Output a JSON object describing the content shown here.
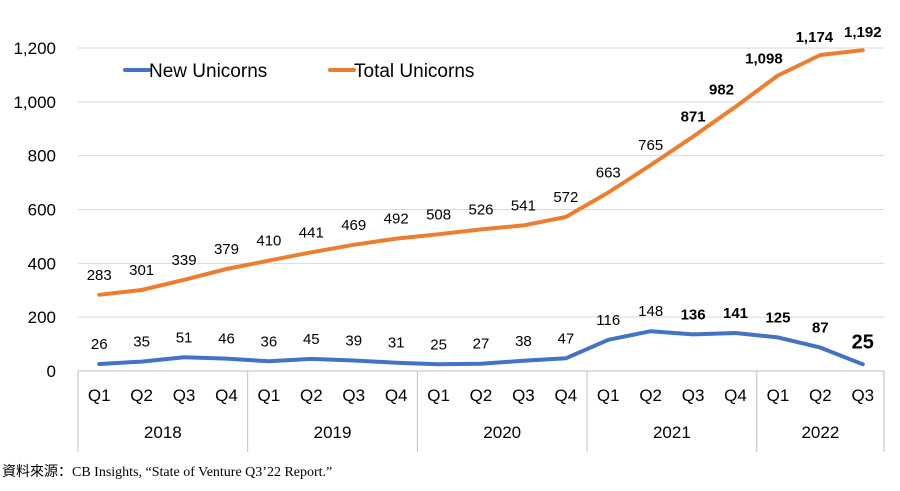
{
  "chart_data": {
    "type": "line",
    "categories": [
      "Q1",
      "Q2",
      "Q3",
      "Q4",
      "Q1",
      "Q2",
      "Q3",
      "Q4",
      "Q1",
      "Q2",
      "Q3",
      "Q4",
      "Q1",
      "Q2",
      "Q3",
      "Q4",
      "Q1",
      "Q2",
      "Q3"
    ],
    "years": [
      {
        "label": "2018",
        "count": 4
      },
      {
        "label": "2019",
        "count": 4
      },
      {
        "label": "2020",
        "count": 4
      },
      {
        "label": "2021",
        "count": 4
      },
      {
        "label": "2022",
        "count": 3
      }
    ],
    "series": [
      {
        "name": "New Unicorns",
        "color": "#4472C4",
        "values": [
          26,
          35,
          51,
          46,
          36,
          45,
          39,
          31,
          25,
          27,
          38,
          47,
          116,
          148,
          136,
          141,
          125,
          87,
          25
        ],
        "labels": [
          "26",
          "35",
          "51",
          "46",
          "36",
          "45",
          "39",
          "31",
          "25",
          "27",
          "38",
          "47",
          "116",
          "148",
          "136",
          "141",
          "125",
          "87",
          "25"
        ],
        "bold": [
          false,
          false,
          false,
          false,
          false,
          false,
          false,
          false,
          false,
          false,
          false,
          false,
          false,
          false,
          true,
          true,
          true,
          true,
          true
        ]
      },
      {
        "name": "Total Unicorns",
        "color": "#ED7D31",
        "values": [
          283,
          301,
          339,
          379,
          410,
          441,
          469,
          492,
          508,
          526,
          541,
          572,
          663,
          765,
          871,
          982,
          1098,
          1174,
          1192
        ],
        "labels": [
          "283",
          "301",
          "339",
          "379",
          "410",
          "441",
          "469",
          "492",
          "508",
          "526",
          "541",
          "572",
          "663",
          "765",
          "871",
          "982",
          "1,098",
          "1,174",
          "1,192"
        ],
        "bold": [
          false,
          false,
          false,
          false,
          false,
          false,
          false,
          false,
          false,
          false,
          false,
          false,
          false,
          false,
          true,
          true,
          true,
          true,
          true
        ]
      }
    ],
    "yticks": [
      "0",
      "200",
      "400",
      "600",
      "800",
      "1,000",
      "1,200"
    ],
    "ylim": [
      0,
      1200
    ],
    "grid": true,
    "legend": "top-left"
  },
  "source": "資料來源：CB Insights, “State of Venture Q3’22 Report.”"
}
